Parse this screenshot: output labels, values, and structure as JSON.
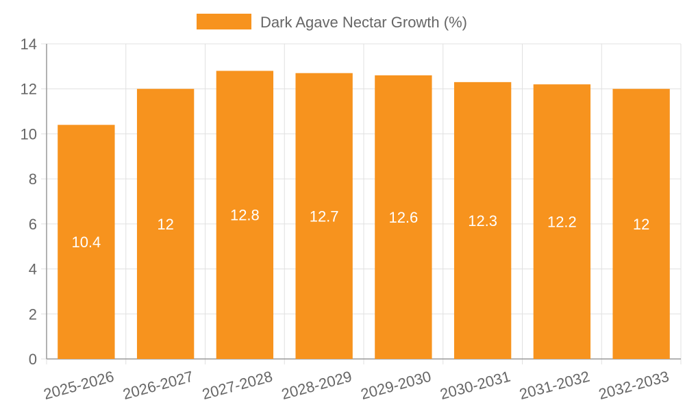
{
  "chart_data": {
    "type": "bar",
    "categories": [
      "2025-2026",
      "2026-2027",
      "2027-2028",
      "2028-2029",
      "2029-2030",
      "2030-2031",
      "2031-2032",
      "2032-2033"
    ],
    "series": [
      {
        "name": "Dark Agave Nectar Growth (%)",
        "values": [
          10.4,
          12,
          12.8,
          12.7,
          12.6,
          12.3,
          12.2,
          12
        ],
        "color": "#f7931e"
      }
    ],
    "ylim": [
      0,
      14
    ],
    "yticks": [
      0,
      2,
      4,
      6,
      8,
      10,
      12,
      14
    ],
    "grid": true,
    "legend_position": "top-center",
    "data_labels": "inside-center",
    "colors": {
      "bar": "#f7931e",
      "grid": "#e0e0e0",
      "axis": "#999999",
      "text": "#666666",
      "label": "#ffffff"
    }
  }
}
